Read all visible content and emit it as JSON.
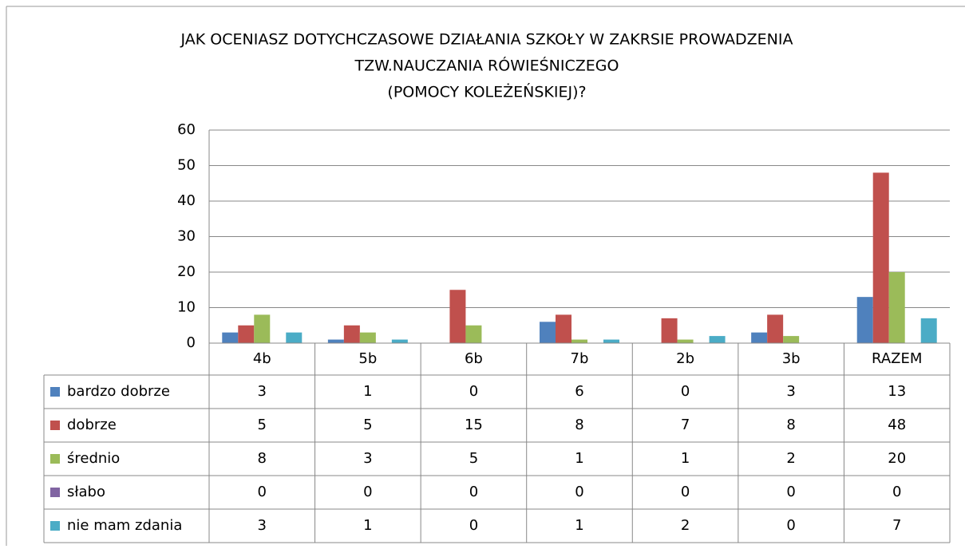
{
  "chart_data": {
    "type": "bar",
    "title": [
      "JAK OCENIASZ DOTYCHCZASOWE DZIAŁANIA SZKOŁY W ZAKRSIE PROWADZENIA",
      "TZW.NAUCZANIA RÓWIEŚNICZEGO",
      "(POMOCY KOLEŻEŃSKIEJ)?"
    ],
    "categories": [
      "4b",
      "5b",
      "6b",
      "7b",
      "2b",
      "3b",
      "RAZEM"
    ],
    "series": [
      {
        "name": "bardzo dobrze",
        "color": "#4f81bd",
        "values": [
          3,
          1,
          0,
          6,
          0,
          3,
          13
        ]
      },
      {
        "name": "dobrze",
        "color": "#c0504d",
        "values": [
          5,
          5,
          15,
          8,
          7,
          8,
          48
        ]
      },
      {
        "name": "średnio",
        "color": "#9bbb59",
        "values": [
          8,
          3,
          5,
          1,
          1,
          2,
          20
        ]
      },
      {
        "name": "słabo",
        "color": "#8064a2",
        "values": [
          0,
          0,
          0,
          0,
          0,
          0,
          0
        ]
      },
      {
        "name": "nie mam zdania",
        "color": "#4bacc6",
        "values": [
          3,
          1,
          0,
          1,
          2,
          0,
          7
        ]
      }
    ],
    "ylim": [
      0,
      60
    ],
    "yticks": [
      0,
      10,
      20,
      30,
      40,
      50,
      60
    ],
    "grid": true,
    "data_table": true
  }
}
